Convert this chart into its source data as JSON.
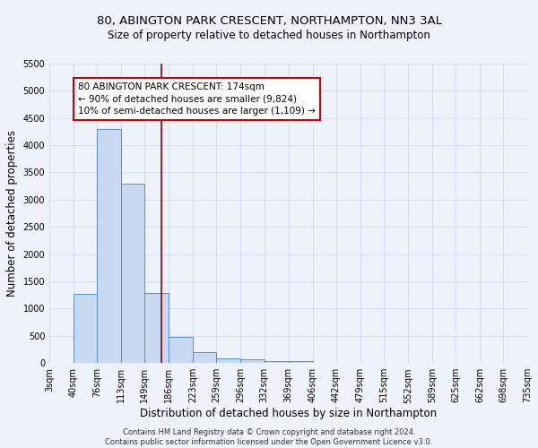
{
  "title": "80, ABINGTON PARK CRESCENT, NORTHAMPTON, NN3 3AL",
  "subtitle": "Size of property relative to detached houses in Northampton",
  "xlabel": "Distribution of detached houses by size in Northampton",
  "ylabel": "Number of detached properties",
  "bin_labels": [
    "3sqm",
    "40sqm",
    "76sqm",
    "113sqm",
    "149sqm",
    "186sqm",
    "223sqm",
    "259sqm",
    "296sqm",
    "332sqm",
    "369sqm",
    "406sqm",
    "442sqm",
    "479sqm",
    "515sqm",
    "552sqm",
    "589sqm",
    "625sqm",
    "662sqm",
    "698sqm",
    "735sqm"
  ],
  "bar_values": [
    0,
    1270,
    4300,
    3300,
    1280,
    480,
    200,
    85,
    60,
    30,
    30,
    0,
    0,
    0,
    0,
    0,
    0,
    0,
    0,
    0
  ],
  "bar_color": "#c8d8f0",
  "bar_edge_color": "#5a8fc2",
  "vline_x_index": 4,
  "bin_edges": [
    3,
    40,
    76,
    113,
    149,
    186,
    223,
    259,
    296,
    332,
    369,
    406,
    442,
    479,
    515,
    552,
    589,
    625,
    662,
    698,
    735
  ],
  "ylim": [
    0,
    5500
  ],
  "yticks": [
    0,
    500,
    1000,
    1500,
    2000,
    2500,
    3000,
    3500,
    4000,
    4500,
    5000,
    5500
  ],
  "annotation_line1": "80 ABINGTON PARK CRESCENT: 174sqm",
  "annotation_line2": "← 90% of detached houses are smaller (9,824)",
  "annotation_line3": "10% of semi-detached houses are larger (1,109) →",
  "annotation_box_color": "white",
  "annotation_box_edge_color": "#cc0000",
  "vline_color": "#8b0000",
  "footer_text": "Contains HM Land Registry data © Crown copyright and database right 2024.\nContains public sector information licensed under the Open Government Licence v3.0.",
  "bg_color": "#eef2fb",
  "grid_color": "#d0d8ee",
  "title_fontsize": 9.5,
  "subtitle_fontsize": 8.5,
  "axis_label_fontsize": 8.5,
  "tick_fontsize": 7,
  "annotation_fontsize": 7.5,
  "footer_fontsize": 6
}
